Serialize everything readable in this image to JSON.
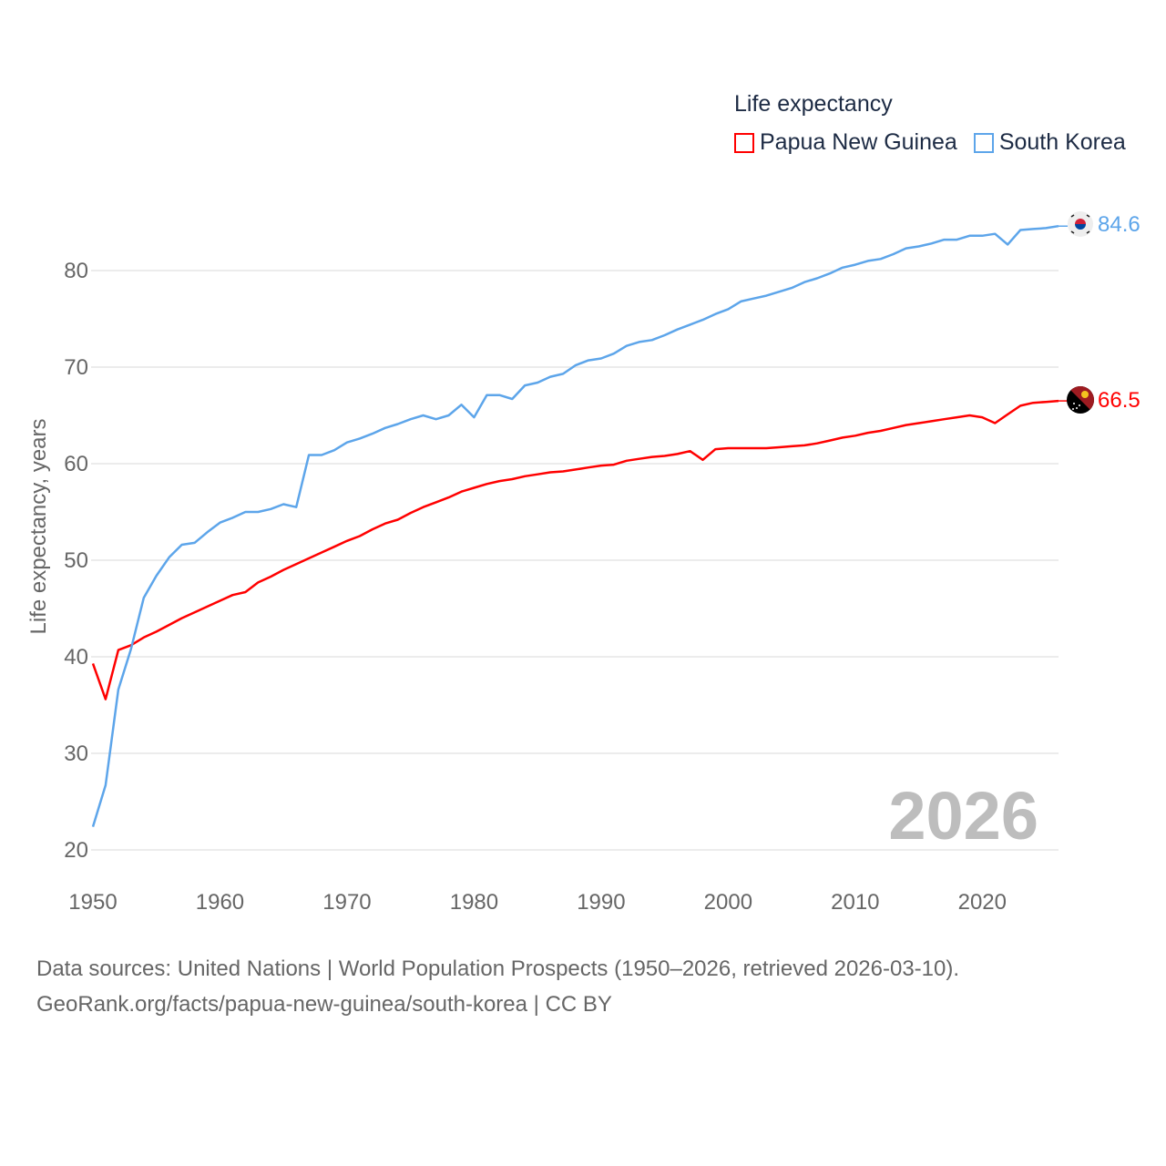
{
  "chart_data": {
    "type": "line",
    "title": "Life expectancy",
    "xlabel": "",
    "ylabel": "Life expectancy, years",
    "xlim": [
      1950,
      2026
    ],
    "ylim": [
      20,
      80
    ],
    "x_ticks": [
      1950,
      1960,
      1970,
      1980,
      1990,
      2000,
      2010,
      2020
    ],
    "y_ticks": [
      20,
      30,
      40,
      50,
      60,
      70,
      80
    ],
    "grid": true,
    "legend_position": "top-right",
    "year_label": "2026",
    "x": [
      1950,
      1951,
      1952,
      1953,
      1954,
      1955,
      1956,
      1957,
      1958,
      1959,
      1960,
      1961,
      1962,
      1963,
      1964,
      1965,
      1966,
      1967,
      1968,
      1969,
      1970,
      1971,
      1972,
      1973,
      1974,
      1975,
      1976,
      1977,
      1978,
      1979,
      1980,
      1981,
      1982,
      1983,
      1984,
      1985,
      1986,
      1987,
      1988,
      1989,
      1990,
      1991,
      1992,
      1993,
      1994,
      1995,
      1996,
      1997,
      1998,
      1999,
      2000,
      2001,
      2002,
      2003,
      2004,
      2005,
      2006,
      2007,
      2008,
      2009,
      2010,
      2011,
      2012,
      2013,
      2014,
      2015,
      2016,
      2017,
      2018,
      2019,
      2020,
      2021,
      2022,
      2023,
      2024,
      2025,
      2026
    ],
    "series": [
      {
        "name": "Papua New Guinea",
        "color": "#ff0000",
        "end_label": "66.5",
        "values": [
          39.3,
          35.6,
          40.7,
          41.2,
          42.0,
          42.6,
          43.3,
          44.0,
          44.6,
          45.2,
          45.8,
          46.4,
          46.7,
          47.7,
          48.3,
          49.0,
          49.6,
          50.2,
          50.8,
          51.4,
          52.0,
          52.5,
          53.2,
          53.8,
          54.2,
          54.9,
          55.5,
          56.0,
          56.5,
          57.1,
          57.5,
          57.9,
          58.2,
          58.4,
          58.7,
          58.9,
          59.1,
          59.2,
          59.4,
          59.6,
          59.8,
          59.9,
          60.3,
          60.5,
          60.7,
          60.8,
          61.0,
          61.3,
          60.4,
          61.5,
          61.6,
          61.6,
          61.6,
          61.6,
          61.7,
          61.8,
          61.9,
          62.1,
          62.4,
          62.7,
          62.9,
          63.2,
          63.4,
          63.7,
          64.0,
          64.2,
          64.4,
          64.6,
          64.8,
          65.0,
          64.8,
          64.2,
          65.1,
          66.0,
          66.3,
          66.4,
          66.5
        ]
      },
      {
        "name": "South Korea",
        "color": "#5da5ea",
        "end_label": "84.6",
        "values": [
          22.4,
          26.7,
          36.6,
          40.8,
          46.1,
          48.4,
          50.3,
          51.6,
          51.8,
          52.9,
          53.9,
          54.4,
          55.0,
          55.0,
          55.3,
          55.8,
          55.5,
          60.9,
          60.9,
          61.4,
          62.2,
          62.6,
          63.1,
          63.7,
          64.1,
          64.6,
          65.0,
          64.6,
          65.0,
          66.1,
          64.8,
          67.1,
          67.1,
          66.7,
          68.1,
          68.4,
          69.0,
          69.3,
          70.2,
          70.7,
          70.9,
          71.4,
          72.2,
          72.6,
          72.8,
          73.3,
          73.9,
          74.4,
          74.9,
          75.5,
          76.0,
          76.8,
          77.1,
          77.4,
          77.8,
          78.2,
          78.8,
          79.2,
          79.7,
          80.3,
          80.6,
          81.0,
          81.2,
          81.7,
          82.3,
          82.5,
          82.8,
          83.2,
          83.2,
          83.6,
          83.6,
          83.8,
          82.7,
          84.2,
          84.3,
          84.4,
          84.6
        ]
      }
    ]
  },
  "sources": {
    "line1": "Data sources: United Nations | World Population Prospects (1950–2026, retrieved 2026-03-10).",
    "line2": "GeoRank.org/facts/papua-new-guinea/south-korea | CC BY"
  }
}
